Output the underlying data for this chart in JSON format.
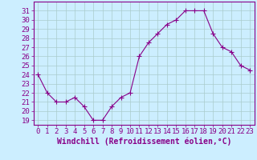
{
  "x": [
    0,
    1,
    2,
    3,
    4,
    5,
    6,
    7,
    8,
    9,
    10,
    11,
    12,
    13,
    14,
    15,
    16,
    17,
    18,
    19,
    20,
    21,
    22,
    23
  ],
  "y": [
    24,
    22,
    21,
    21,
    21.5,
    20.5,
    19,
    19,
    20.5,
    21.5,
    22,
    26,
    27.5,
    28.5,
    29.5,
    30,
    31,
    31,
    31,
    28.5,
    27,
    26.5,
    25,
    24.5
  ],
  "line_color": "#880088",
  "marker": "+",
  "marker_size": 4,
  "bg_color": "#cceeff",
  "grid_color": "#aacccc",
  "xlabel": "Windchill (Refroidissement éolien,°C)",
  "ylabel_ticks": [
    19,
    20,
    21,
    22,
    23,
    24,
    25,
    26,
    27,
    28,
    29,
    30,
    31
  ],
  "xlim": [
    -0.5,
    23.5
  ],
  "ylim": [
    18.5,
    32
  ],
  "tick_color": "#880088",
  "xlabel_fontsize": 7,
  "tick_fontsize": 6.5
}
